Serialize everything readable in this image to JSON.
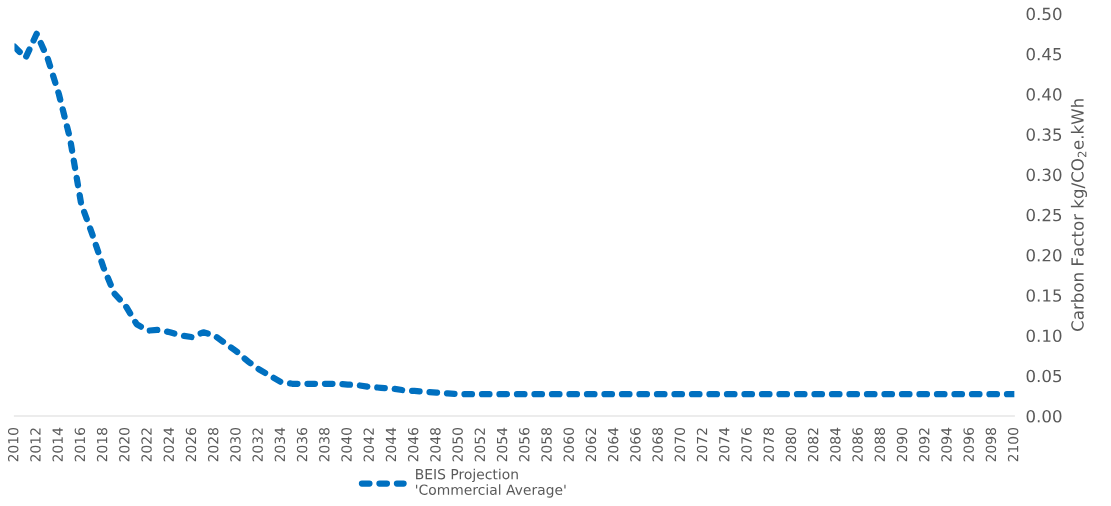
{
  "chart_data": {
    "type": "line",
    "ylabel": "Carbon Factor kg/CO$_{2}$e.kWh",
    "x": [
      2010,
      2011,
      2012,
      2013,
      2014,
      2015,
      2016,
      2017,
      2018,
      2019,
      2020,
      2021,
      2022,
      2023,
      2024,
      2025,
      2026,
      2027,
      2028,
      2029,
      2030,
      2031,
      2032,
      2033,
      2034,
      2035,
      2036,
      2037,
      2038,
      2039,
      2040,
      2041,
      2042,
      2043,
      2044,
      2045,
      2046,
      2047,
      2048,
      2049,
      2050,
      2055,
      2060,
      2065,
      2070,
      2075,
      2080,
      2085,
      2090,
      2095,
      2100
    ],
    "series": [
      {
        "name": "BEIS Projection\n'Commercial Average'",
        "color": "#0070c0",
        "values": [
          0.459,
          0.445,
          0.475,
          0.444,
          0.4,
          0.345,
          0.264,
          0.226,
          0.185,
          0.152,
          0.137,
          0.114,
          0.106,
          0.107,
          0.104,
          0.1,
          0.098,
          0.104,
          0.1,
          0.09,
          0.08,
          0.068,
          0.058,
          0.05,
          0.042,
          0.04,
          0.04,
          0.04,
          0.04,
          0.04,
          0.039,
          0.038,
          0.036,
          0.035,
          0.034,
          0.032,
          0.031,
          0.03,
          0.029,
          0.028,
          0.027,
          0.027,
          0.027,
          0.027,
          0.027,
          0.027,
          0.027,
          0.027,
          0.027,
          0.027,
          0.027
        ]
      }
    ],
    "xlim": [
      2010,
      2100
    ],
    "xticks": [
      2010,
      2012,
      2014,
      2016,
      2018,
      2020,
      2022,
      2024,
      2026,
      2028,
      2030,
      2032,
      2034,
      2036,
      2038,
      2040,
      2042,
      2044,
      2046,
      2048,
      2050,
      2052,
      2054,
      2056,
      2058,
      2060,
      2062,
      2064,
      2066,
      2068,
      2070,
      2072,
      2074,
      2076,
      2078,
      2080,
      2082,
      2084,
      2086,
      2088,
      2090,
      2092,
      2094,
      2096,
      2098,
      2100
    ],
    "ylim": [
      0,
      0.5
    ],
    "yticks": [
      {
        "value": 0,
        "label": "0.00"
      },
      {
        "value": 0.05,
        "label": "0.05"
      },
      {
        "value": 0.1,
        "label": "0.10"
      },
      {
        "value": 0.15,
        "label": "0.15"
      },
      {
        "value": 0.2,
        "label": "0.20"
      },
      {
        "value": 0.25,
        "label": "0.25"
      },
      {
        "value": 0.3,
        "label": "0.30"
      },
      {
        "value": 0.35,
        "label": "0.35"
      },
      {
        "value": 0.4,
        "label": "0.40"
      },
      {
        "value": 0.45,
        "label": "0.45"
      },
      {
        "value": 0.5,
        "label": "0.50"
      }
    ],
    "line_style": "dashed",
    "legend": "bottom"
  }
}
